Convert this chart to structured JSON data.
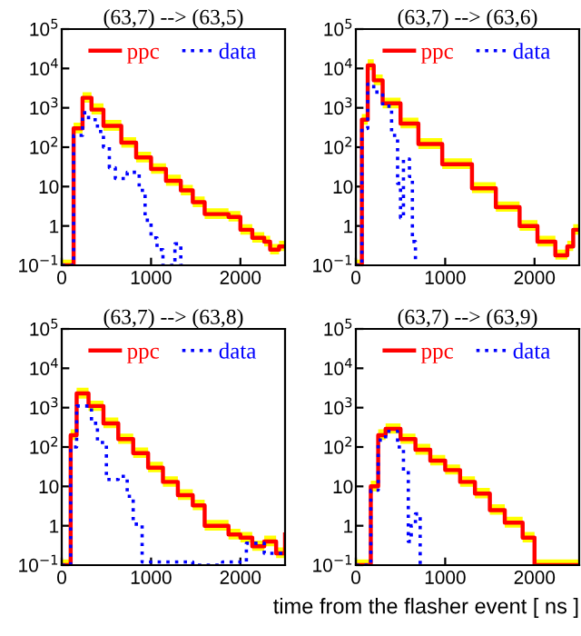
{
  "chart_data": [
    {
      "type": "step",
      "title": "(63,7) --> (63,5)",
      "legend": "top",
      "log": "y",
      "xlim": [
        0,
        2500
      ],
      "ylim": [
        0.1,
        100000
      ],
      "xticks": [
        0,
        1000,
        2000
      ],
      "yticks": [
        {
          "value": 0.1,
          "label": "10$^{−1}$"
        },
        1,
        10,
        {
          "value": 100,
          "label": "10$^{2}$"
        },
        {
          "value": 1000,
          "label": "10$^{3}$"
        },
        {
          "value": 10000,
          "label": "10$^{4}$"
        },
        {
          "value": 100000,
          "label": "10$^{5}$"
        }
      ],
      "series": [
        {
          "name": "ppc",
          "color": "#ff0000",
          "line_style": "solid",
          "x": [
            0,
            133,
            233,
            333,
            467,
            667,
            833,
            1000,
            1167,
            1333,
            1467,
            1600,
            1733,
            1867,
            2000,
            2133,
            2267,
            2333,
            2433,
            2500
          ],
          "values": [
            0.1,
            300,
            1800,
            900,
            350,
            130,
            55,
            28,
            14,
            8,
            4,
            2,
            2,
            1.7,
            0.8,
            0.5,
            0.4,
            0.25,
            0.3,
            0.3
          ],
          "upper": [
            0.14,
            420,
            2500,
            1300,
            490,
            180,
            77,
            39,
            20,
            11,
            5.6,
            2.8,
            2.8,
            2.4,
            1.1,
            0.7,
            0.56,
            0.35,
            0.42,
            0.42
          ],
          "lower": [
            0.1,
            225,
            1350,
            675,
            260,
            98,
            41,
            21,
            10.5,
            6,
            3,
            1.5,
            1.5,
            1.3,
            0.6,
            0.38,
            0.3,
            0.19,
            0.23,
            0.23
          ]
        },
        {
          "name": "data",
          "color": "#0000ff",
          "line_style": "dotted",
          "x": [
            0,
            133,
            233,
            300,
            400,
            467,
            533,
            600,
            733,
            867,
            933,
            1000,
            1067,
            1133,
            1267,
            1333,
            1400
          ],
          "values": [
            0.1,
            200,
            750,
            500,
            250,
            100,
            30,
            16,
            23,
            8,
            1.4,
            0.5,
            0.25,
            0.1,
            0.35,
            0.1,
            0.1
          ]
        }
      ]
    },
    {
      "type": "step",
      "title": "(63,7) --> (63,6)",
      "legend": "top",
      "log": "y",
      "xlim": [
        0,
        2500
      ],
      "ylim": [
        0.1,
        100000
      ],
      "xticks": [
        0,
        1000,
        2000
      ],
      "yticks": [
        {
          "value": 0.1,
          "label": "10$^{−1}$"
        },
        1,
        10,
        {
          "value": 100,
          "label": "10$^{2}$"
        },
        {
          "value": 1000,
          "label": "10$^{3}$"
        },
        {
          "value": 10000,
          "label": "10$^{4}$"
        },
        {
          "value": 100000,
          "label": "10$^{5}$"
        }
      ],
      "series": [
        {
          "name": "ppc",
          "color": "#ff0000",
          "line_style": "solid",
          "x": [
            0,
            67,
            133,
            200,
            300,
            500,
            700,
            967,
            1300,
            1567,
            1833,
            2033,
            2233,
            2367,
            2433,
            2500
          ],
          "values": [
            0.1,
            500,
            12000,
            5000,
            1300,
            400,
            120,
            37,
            9,
            3,
            1,
            0.4,
            0.18,
            0.3,
            0.8,
            0.8
          ],
          "upper": [
            0.14,
            700,
            17000,
            7000,
            1800,
            560,
            170,
            52,
            13,
            4.2,
            1.4,
            0.56,
            0.25,
            0.42,
            1.1,
            1.1
          ],
          "lower": [
            0.1,
            375,
            9000,
            3750,
            975,
            300,
            90,
            28,
            6.8,
            2.3,
            0.75,
            0.3,
            0.14,
            0.23,
            0.6,
            0.6
          ]
        },
        {
          "name": "data",
          "color": "#0000ff",
          "line_style": "dotted",
          "x": [
            0,
            67,
            133,
            200,
            300,
            400,
            467,
            500,
            533,
            600,
            633,
            667
          ],
          "values": [
            0.1,
            300,
            4000,
            2500,
            1100,
            200,
            12,
            1.6,
            50,
            18,
            0.4,
            0.1
          ]
        }
      ]
    },
    {
      "type": "step",
      "title": "(63,7) --> (63,8)",
      "legend": "top",
      "log": "y",
      "xlim": [
        0,
        2500
      ],
      "ylim": [
        0.1,
        100000
      ],
      "xticks": [
        0,
        1000,
        2000
      ],
      "yticks": [
        {
          "value": 0.1,
          "label": "10$^{−1}$"
        },
        1,
        10,
        {
          "value": 100,
          "label": "10$^{2}$"
        },
        {
          "value": 1000,
          "label": "10$^{3}$"
        },
        {
          "value": 10000,
          "label": "10$^{4}$"
        },
        {
          "value": 100000,
          "label": "10$^{5}$"
        }
      ],
      "series": [
        {
          "name": "ppc",
          "color": "#ff0000",
          "line_style": "solid",
          "x": [
            0,
            100,
            167,
            300,
            467,
            633,
            800,
            967,
            1133,
            1300,
            1467,
            1600,
            1733,
            1867,
            2000,
            2133,
            2267,
            2400,
            2500
          ],
          "values": [
            0.1,
            200,
            2300,
            1100,
            400,
            160,
            70,
            30,
            13,
            6,
            3.3,
            1,
            1,
            0.6,
            0.5,
            0.3,
            0.4,
            0.2,
            0.6
          ],
          "upper": [
            0.14,
            280,
            3200,
            1500,
            560,
            220,
            98,
            42,
            18,
            8.4,
            4.6,
            1.4,
            1.4,
            0.84,
            0.7,
            0.42,
            0.56,
            0.28,
            0.84
          ],
          "lower": [
            0.1,
            150,
            1700,
            825,
            300,
            120,
            53,
            23,
            9.8,
            4.5,
            2.5,
            0.75,
            0.75,
            0.45,
            0.38,
            0.23,
            0.3,
            0.15,
            0.45
          ]
        },
        {
          "name": "data",
          "color": "#0000ff",
          "line_style": "dotted",
          "x": [
            0,
            100,
            167,
            333,
            400,
            500,
            633,
            733,
            800,
            900,
            1067,
            1467,
            1800,
            2067,
            2267,
            2500
          ],
          "values": [
            0.1,
            100,
            1100,
            400,
            130,
            15,
            18,
            5.6,
            1.1,
            0.12,
            0.12,
            0.1,
            0.12,
            0.36,
            0.2,
            0.2
          ]
        }
      ]
    },
    {
      "type": "step",
      "title": "(63,7) --> (63,9)",
      "xlabel": "time from the flasher event [ ns ]",
      "legend": "top",
      "log": "y",
      "xlim": [
        0,
        2500
      ],
      "ylim": [
        0.1,
        100000
      ],
      "xticks": [
        0,
        1000,
        2000
      ],
      "yticks": [
        {
          "value": 0.1,
          "label": "10$^{−1}$"
        },
        1,
        10,
        {
          "value": 100,
          "label": "10$^{2}$"
        },
        {
          "value": 1000,
          "label": "10$^{3}$"
        },
        {
          "value": 10000,
          "label": "10$^{4}$"
        },
        {
          "value": 100000,
          "label": "10$^{5}$"
        }
      ],
      "series": [
        {
          "name": "ppc",
          "color": "#ff0000",
          "line_style": "solid",
          "x": [
            0,
            167,
            250,
            333,
            500,
            667,
            833,
            1000,
            1167,
            1333,
            1500,
            1667,
            1867,
            2000,
            2500
          ],
          "values": [
            0.1,
            10,
            200,
            290,
            160,
            85,
            45,
            26,
            13,
            6.6,
            2.5,
            1.2,
            0.5,
            0.1,
            0.1
          ],
          "upper": [
            0.14,
            14,
            280,
            400,
            220,
            120,
            63,
            36,
            18,
            9.2,
            3.5,
            1.7,
            0.7,
            0.14,
            0.14
          ],
          "lower": [
            0.1,
            7.5,
            150,
            220,
            120,
            64,
            34,
            20,
            9.8,
            5,
            1.9,
            0.9,
            0.38,
            0.1,
            0.1
          ]
        },
        {
          "name": "data",
          "color": "#0000ff",
          "line_style": "dotted",
          "x": [
            0,
            167,
            250,
            333,
            467,
            533,
            587,
            620,
            667,
            720
          ],
          "values": [
            0.1,
            8,
            150,
            250,
            100,
            25,
            0.4,
            1,
            2,
            0.1
          ]
        }
      ]
    }
  ]
}
